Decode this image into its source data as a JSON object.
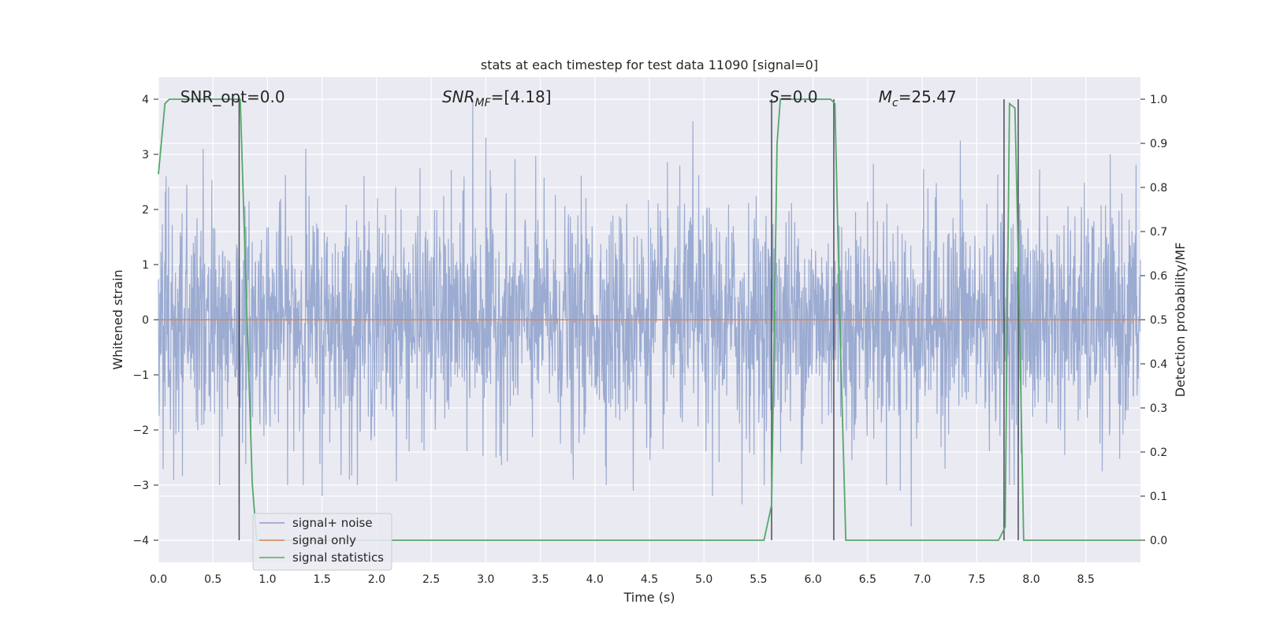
{
  "chart_data": {
    "type": "line",
    "title": "stats at each timestep for test data 11090 [signal=0]",
    "xlabel": "Time (s)",
    "ylabel_left": "Whitened strain",
    "ylabel_right": "Detection probability/MF",
    "xlim": [
      0.0,
      9.0
    ],
    "ylim_left": [
      -4.4,
      4.4
    ],
    "ylim_right": [
      -0.05,
      1.05
    ],
    "x_ticks": [
      "0.0",
      "0.5",
      "1.0",
      "1.5",
      "2.0",
      "2.5",
      "3.0",
      "3.5",
      "4.0",
      "4.5",
      "5.0",
      "5.5",
      "6.0",
      "6.5",
      "7.0",
      "7.5",
      "8.0",
      "8.5"
    ],
    "x_tick_values": [
      0.0,
      0.5,
      1.0,
      1.5,
      2.0,
      2.5,
      3.0,
      3.5,
      4.0,
      4.5,
      5.0,
      5.5,
      6.0,
      6.5,
      7.0,
      7.5,
      8.0,
      8.5
    ],
    "y_ticks_left": [
      "−4",
      "−3",
      "−2",
      "−1",
      "0",
      "1",
      "2",
      "3",
      "4"
    ],
    "y_tick_values_left": [
      -4,
      -3,
      -2,
      -1,
      0,
      1,
      2,
      3,
      4
    ],
    "y_ticks_right": [
      "0.0",
      "0.1",
      "0.2",
      "0.3",
      "0.4",
      "0.5",
      "0.6",
      "0.7",
      "0.8",
      "0.9",
      "1.0"
    ],
    "y_tick_values_right": [
      0.0,
      0.1,
      0.2,
      0.3,
      0.4,
      0.5,
      0.6,
      0.7,
      0.8,
      0.9,
      1.0
    ],
    "grid": true,
    "legend_position": "lower-left",
    "annotations": [
      {
        "text": "SNR_opt=0.0",
        "x": 0.2,
        "y": 4.0
      },
      {
        "text": "SNR_MF=[4.18]",
        "x": 2.6,
        "y": 4.0
      },
      {
        "text": "S=0.0",
        "x": 5.6,
        "y": 4.0
      },
      {
        "text": "M_c=25.47",
        "x": 6.6,
        "y": 4.0
      }
    ],
    "series": [
      {
        "name": "signal+ noise",
        "color": "#8da0cb",
        "axis": "left",
        "x_range": [
          0.0,
          9.0
        ],
        "amplitude_std": 1.0,
        "peaks": [
          {
            "x": 0.07,
            "y": 2.6
          },
          {
            "x": 0.41,
            "y": 3.1
          },
          {
            "x": 0.74,
            "y": -3.4
          },
          {
            "x": 1.35,
            "y": 3.1
          },
          {
            "x": 1.5,
            "y": -3.2
          },
          {
            "x": 1.75,
            "y": -2.9
          },
          {
            "x": 2.88,
            "y": 4.0
          },
          {
            "x": 3.0,
            "y": 3.3
          },
          {
            "x": 3.8,
            "y": -2.9
          },
          {
            "x": 4.35,
            "y": -3.1
          },
          {
            "x": 4.9,
            "y": 3.6
          },
          {
            "x": 5.08,
            "y": -3.2
          },
          {
            "x": 5.35,
            "y": -3.35
          },
          {
            "x": 6.9,
            "y": -3.75
          },
          {
            "x": 6.8,
            "y": -3.1
          },
          {
            "x": 7.35,
            "y": 3.25
          },
          {
            "x": 7.8,
            "y": -3.0
          },
          {
            "x": 8.65,
            "y": -2.75
          }
        ]
      },
      {
        "name": "signal only",
        "color": "#dd8452",
        "axis": "left",
        "x": [
          0.0,
          9.0
        ],
        "y": [
          0.0,
          0.0
        ]
      },
      {
        "name": "signal statistics",
        "color": "#55a868",
        "axis": "right",
        "x": [
          0.0,
          0.06,
          0.1,
          0.72,
          0.75,
          0.8,
          0.86,
          0.9,
          5.55,
          5.62,
          5.67,
          5.7,
          6.16,
          6.2,
          6.25,
          6.3,
          7.7,
          7.76,
          7.8,
          7.85,
          7.88,
          7.93,
          8.0,
          9.0
        ],
        "y": [
          0.83,
          0.99,
          1.0,
          1.0,
          1.0,
          0.6,
          0.13,
          0.0,
          0.0,
          0.08,
          0.9,
          1.0,
          1.0,
          0.99,
          0.45,
          0.0,
          0.0,
          0.03,
          0.99,
          0.98,
          0.65,
          0.0,
          0.0,
          0.0
        ]
      }
    ],
    "vertical_markers": {
      "color": "#4c4c5c",
      "x": [
        0.74,
        5.62,
        6.19,
        7.75,
        7.88
      ],
      "y_range_right": [
        0.0,
        1.0
      ]
    }
  }
}
